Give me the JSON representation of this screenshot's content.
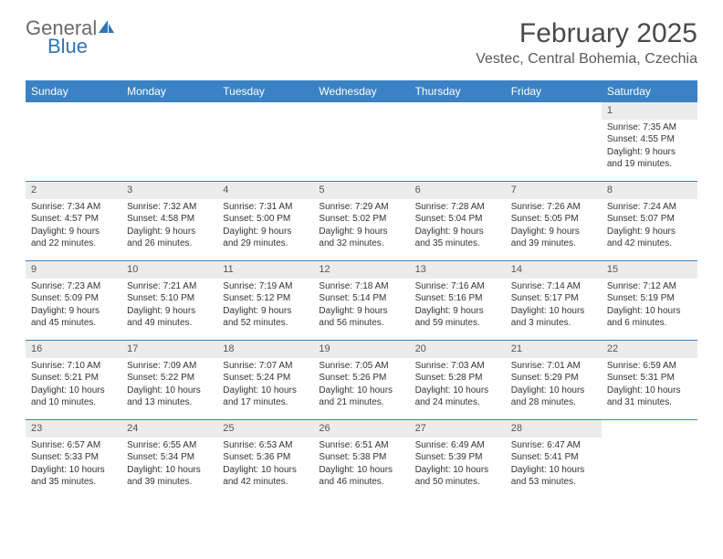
{
  "brand": {
    "word1": "General",
    "word2": "Blue",
    "logo_color": "#2e75b6",
    "text_color_gray": "#6a6a6a"
  },
  "title": {
    "month": "February 2025",
    "location": "Vestec, Central Bohemia, Czechia"
  },
  "colors": {
    "header_bg": "#3b82c4",
    "header_text": "#ffffff",
    "daynum_bg": "#ececec",
    "week_border": "#3b82c4",
    "body_text": "#333333"
  },
  "dayNames": [
    "Sunday",
    "Monday",
    "Tuesday",
    "Wednesday",
    "Thursday",
    "Friday",
    "Saturday"
  ],
  "weeks": [
    [
      {
        "n": "",
        "sunrise": "",
        "sunset": "",
        "daylight": "",
        "empty": true
      },
      {
        "n": "",
        "sunrise": "",
        "sunset": "",
        "daylight": "",
        "empty": true
      },
      {
        "n": "",
        "sunrise": "",
        "sunset": "",
        "daylight": "",
        "empty": true
      },
      {
        "n": "",
        "sunrise": "",
        "sunset": "",
        "daylight": "",
        "empty": true
      },
      {
        "n": "",
        "sunrise": "",
        "sunset": "",
        "daylight": "",
        "empty": true
      },
      {
        "n": "",
        "sunrise": "",
        "sunset": "",
        "daylight": "",
        "empty": true
      },
      {
        "n": "1",
        "sunrise": "Sunrise: 7:35 AM",
        "sunset": "Sunset: 4:55 PM",
        "daylight": "Daylight: 9 hours and 19 minutes."
      }
    ],
    [
      {
        "n": "2",
        "sunrise": "Sunrise: 7:34 AM",
        "sunset": "Sunset: 4:57 PM",
        "daylight": "Daylight: 9 hours and 22 minutes."
      },
      {
        "n": "3",
        "sunrise": "Sunrise: 7:32 AM",
        "sunset": "Sunset: 4:58 PM",
        "daylight": "Daylight: 9 hours and 26 minutes."
      },
      {
        "n": "4",
        "sunrise": "Sunrise: 7:31 AM",
        "sunset": "Sunset: 5:00 PM",
        "daylight": "Daylight: 9 hours and 29 minutes."
      },
      {
        "n": "5",
        "sunrise": "Sunrise: 7:29 AM",
        "sunset": "Sunset: 5:02 PM",
        "daylight": "Daylight: 9 hours and 32 minutes."
      },
      {
        "n": "6",
        "sunrise": "Sunrise: 7:28 AM",
        "sunset": "Sunset: 5:04 PM",
        "daylight": "Daylight: 9 hours and 35 minutes."
      },
      {
        "n": "7",
        "sunrise": "Sunrise: 7:26 AM",
        "sunset": "Sunset: 5:05 PM",
        "daylight": "Daylight: 9 hours and 39 minutes."
      },
      {
        "n": "8",
        "sunrise": "Sunrise: 7:24 AM",
        "sunset": "Sunset: 5:07 PM",
        "daylight": "Daylight: 9 hours and 42 minutes."
      }
    ],
    [
      {
        "n": "9",
        "sunrise": "Sunrise: 7:23 AM",
        "sunset": "Sunset: 5:09 PM",
        "daylight": "Daylight: 9 hours and 45 minutes."
      },
      {
        "n": "10",
        "sunrise": "Sunrise: 7:21 AM",
        "sunset": "Sunset: 5:10 PM",
        "daylight": "Daylight: 9 hours and 49 minutes."
      },
      {
        "n": "11",
        "sunrise": "Sunrise: 7:19 AM",
        "sunset": "Sunset: 5:12 PM",
        "daylight": "Daylight: 9 hours and 52 minutes."
      },
      {
        "n": "12",
        "sunrise": "Sunrise: 7:18 AM",
        "sunset": "Sunset: 5:14 PM",
        "daylight": "Daylight: 9 hours and 56 minutes."
      },
      {
        "n": "13",
        "sunrise": "Sunrise: 7:16 AM",
        "sunset": "Sunset: 5:16 PM",
        "daylight": "Daylight: 9 hours and 59 minutes."
      },
      {
        "n": "14",
        "sunrise": "Sunrise: 7:14 AM",
        "sunset": "Sunset: 5:17 PM",
        "daylight": "Daylight: 10 hours and 3 minutes."
      },
      {
        "n": "15",
        "sunrise": "Sunrise: 7:12 AM",
        "sunset": "Sunset: 5:19 PM",
        "daylight": "Daylight: 10 hours and 6 minutes."
      }
    ],
    [
      {
        "n": "16",
        "sunrise": "Sunrise: 7:10 AM",
        "sunset": "Sunset: 5:21 PM",
        "daylight": "Daylight: 10 hours and 10 minutes."
      },
      {
        "n": "17",
        "sunrise": "Sunrise: 7:09 AM",
        "sunset": "Sunset: 5:22 PM",
        "daylight": "Daylight: 10 hours and 13 minutes."
      },
      {
        "n": "18",
        "sunrise": "Sunrise: 7:07 AM",
        "sunset": "Sunset: 5:24 PM",
        "daylight": "Daylight: 10 hours and 17 minutes."
      },
      {
        "n": "19",
        "sunrise": "Sunrise: 7:05 AM",
        "sunset": "Sunset: 5:26 PM",
        "daylight": "Daylight: 10 hours and 21 minutes."
      },
      {
        "n": "20",
        "sunrise": "Sunrise: 7:03 AM",
        "sunset": "Sunset: 5:28 PM",
        "daylight": "Daylight: 10 hours and 24 minutes."
      },
      {
        "n": "21",
        "sunrise": "Sunrise: 7:01 AM",
        "sunset": "Sunset: 5:29 PM",
        "daylight": "Daylight: 10 hours and 28 minutes."
      },
      {
        "n": "22",
        "sunrise": "Sunrise: 6:59 AM",
        "sunset": "Sunset: 5:31 PM",
        "daylight": "Daylight: 10 hours and 31 minutes."
      }
    ],
    [
      {
        "n": "23",
        "sunrise": "Sunrise: 6:57 AM",
        "sunset": "Sunset: 5:33 PM",
        "daylight": "Daylight: 10 hours and 35 minutes."
      },
      {
        "n": "24",
        "sunrise": "Sunrise: 6:55 AM",
        "sunset": "Sunset: 5:34 PM",
        "daylight": "Daylight: 10 hours and 39 minutes."
      },
      {
        "n": "25",
        "sunrise": "Sunrise: 6:53 AM",
        "sunset": "Sunset: 5:36 PM",
        "daylight": "Daylight: 10 hours and 42 minutes."
      },
      {
        "n": "26",
        "sunrise": "Sunrise: 6:51 AM",
        "sunset": "Sunset: 5:38 PM",
        "daylight": "Daylight: 10 hours and 46 minutes."
      },
      {
        "n": "27",
        "sunrise": "Sunrise: 6:49 AM",
        "sunset": "Sunset: 5:39 PM",
        "daylight": "Daylight: 10 hours and 50 minutes."
      },
      {
        "n": "28",
        "sunrise": "Sunrise: 6:47 AM",
        "sunset": "Sunset: 5:41 PM",
        "daylight": "Daylight: 10 hours and 53 minutes."
      },
      {
        "n": "",
        "sunrise": "",
        "sunset": "",
        "daylight": "",
        "empty": true
      }
    ]
  ]
}
